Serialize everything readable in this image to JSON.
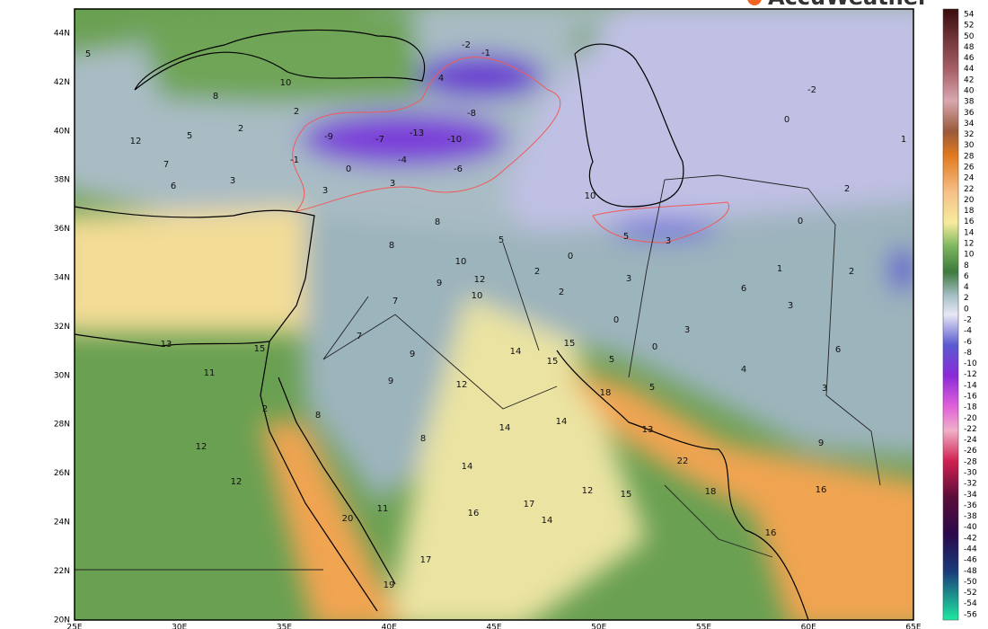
{
  "header": {
    "brand": "AccuWeather"
  },
  "map": {
    "lat_labels": [
      "44N",
      "42N",
      "40N",
      "38N",
      "36N",
      "34N",
      "32N",
      "30N",
      "28N",
      "26N",
      "24N",
      "22N",
      "20N"
    ],
    "lon_labels": [
      "25E",
      "30E",
      "35E",
      "40E",
      "45E",
      "50E",
      "55E",
      "60E",
      "65E"
    ],
    "labels": [
      5,
      10,
      8,
      2,
      5,
      2,
      12,
      7,
      6,
      3,
      -9,
      -7,
      -13,
      -10,
      -4,
      -6,
      0,
      -1,
      -2,
      -1,
      4,
      -8,
      3,
      3,
      8,
      8,
      5,
      10,
      12,
      10,
      9,
      7,
      7,
      9,
      9,
      14,
      15,
      12,
      8,
      8,
      14,
      14,
      16,
      17,
      14,
      17,
      19,
      20,
      11,
      12,
      12,
      12,
      15,
      13,
      22,
      18,
      16,
      16,
      5,
      4,
      3,
      9,
      6,
      3,
      3,
      6,
      1,
      2,
      2,
      1,
      0,
      5,
      3,
      10,
      0,
      2,
      2,
      3,
      0,
      0,
      0,
      5,
      15,
      14,
      18,
      11,
      13,
      15,
      2,
      -2
    ]
  },
  "colorbar": {
    "ticks": [
      54,
      52,
      50,
      48,
      46,
      44,
      42,
      40,
      38,
      36,
      34,
      32,
      30,
      28,
      26,
      24,
      22,
      20,
      18,
      16,
      14,
      12,
      10,
      8,
      6,
      4,
      2,
      0,
      -2,
      -4,
      -6,
      -8,
      -10,
      -12,
      -14,
      -16,
      -18,
      -20,
      -22,
      -24,
      -26,
      -28,
      -30,
      -32,
      -34,
      -36,
      -38,
      -40,
      -42,
      -44,
      -46,
      -48,
      -50,
      -52,
      -54,
      -56
    ]
  }
}
